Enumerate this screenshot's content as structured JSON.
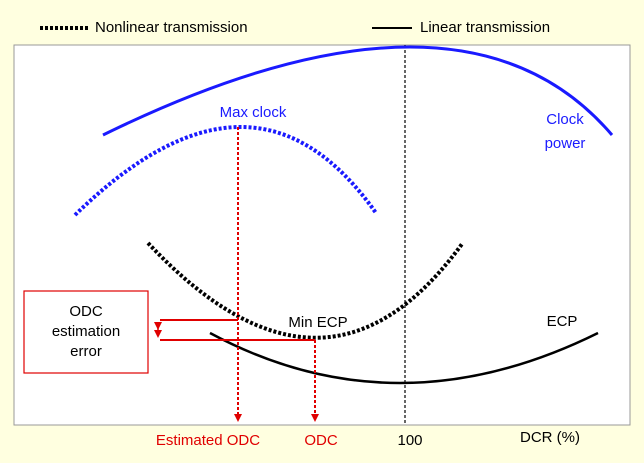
{
  "legend": {
    "items": [
      "Nonlinear transmission",
      "Linear transmission"
    ]
  },
  "curve_labels": {
    "max_clock": "Max clock",
    "clock_power": [
      "Clock",
      "power"
    ],
    "min_ecp": "Min ECP",
    "ecp": "ECP"
  },
  "axis": {
    "label": "DCR (%)",
    "tick": "100",
    "estimated_odc": "Estimated ODC",
    "odc": "ODC"
  },
  "error_box": {
    "lines": [
      "ODC",
      "estimation",
      "error"
    ]
  }
}
